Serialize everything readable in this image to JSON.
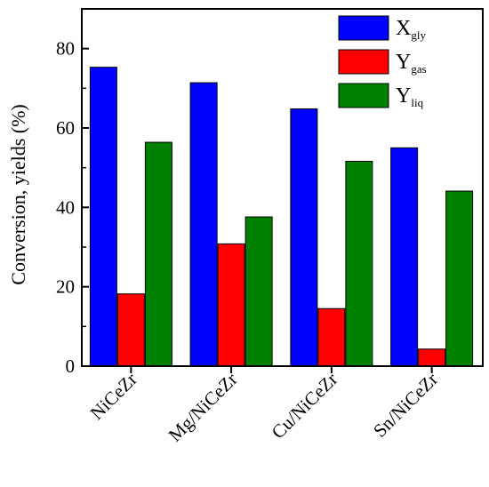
{
  "chart_data": {
    "type": "bar",
    "categories": [
      "NiCeZr",
      "Mg/NiCeZr",
      "Cu/NiCeZr",
      "Sn/NiCeZr"
    ],
    "series": [
      {
        "name": "X",
        "subscript": "gly",
        "color": "#0000ff",
        "values": [
          75.3,
          71.4,
          64.8,
          55.0
        ]
      },
      {
        "name": "Y",
        "subscript": "gas",
        "color": "#ff0000",
        "values": [
          18.2,
          30.8,
          14.5,
          4.3
        ]
      },
      {
        "name": "Y",
        "subscript": "liq",
        "color": "#008000",
        "values": [
          56.4,
          37.6,
          51.6,
          44.1
        ]
      }
    ],
    "ylabel": "Conversion, yields (%)",
    "xlabel": "",
    "ylim": [
      0,
      90
    ],
    "yticks": [
      0,
      20,
      40,
      60,
      80
    ],
    "ytick_labels": [
      "0",
      "20",
      "40",
      "60",
      "80"
    ],
    "grid": false,
    "legend_position": "top-right"
  }
}
